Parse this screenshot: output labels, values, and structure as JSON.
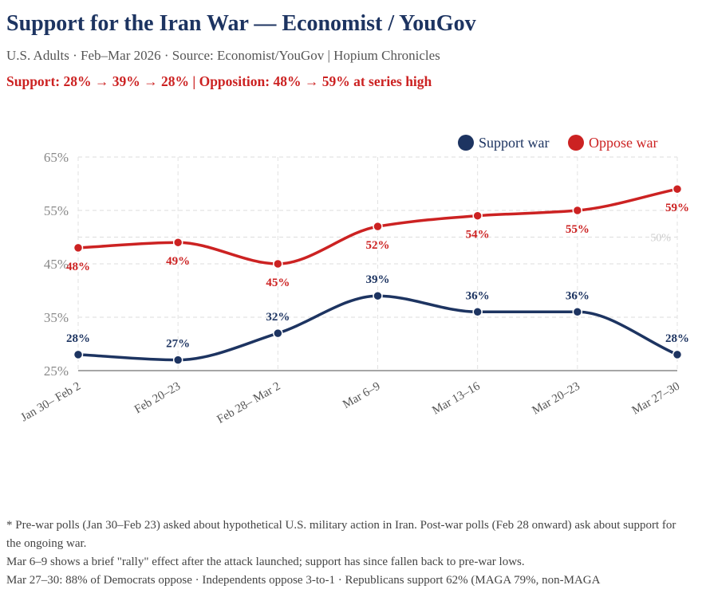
{
  "header": {
    "title": "Support for the Iran War — Economist / YouGov",
    "subtitle": "U.S. Adults · Feb–Mar 2026 · Source: Economist/YouGov | Hopium Chronicles",
    "headline": "Support: 28% → 39% → 28%  |  Opposition: 48% → 59% at series high"
  },
  "chart_data": {
    "type": "line",
    "categories": [
      "Jan 30– Feb 2",
      "Feb 20–23",
      "Feb 28– Mar 2",
      "Mar 6–9",
      "Mar 13–16",
      "Mar 20–23",
      "Mar 27–30"
    ],
    "series": [
      {
        "name": "Support war",
        "color": "#1d3461",
        "values": [
          28,
          27,
          32,
          39,
          36,
          36,
          28
        ],
        "labels": [
          "28%",
          "27%",
          "32%",
          "39%",
          "36%",
          "36%",
          "28%"
        ]
      },
      {
        "name": "Oppose war",
        "color": "#cc2222",
        "values": [
          48,
          49,
          45,
          52,
          54,
          55,
          59
        ],
        "labels": [
          "48%",
          "49%",
          "45%",
          "52%",
          "54%",
          "55%",
          "59%"
        ]
      }
    ],
    "ylim": [
      25,
      65
    ],
    "yticks": [
      25,
      35,
      45,
      55,
      65
    ],
    "ytick_labels": [
      "25%",
      "35%",
      "45%",
      "55%",
      "65%"
    ],
    "reference_line": {
      "value": 50,
      "label": "50%"
    },
    "grid": true,
    "legend_position": "top-right"
  },
  "footnotes": [
    "* Pre-war polls (Jan 30–Feb 23) asked about hypothetical U.S. military action in Iran. Post-war polls (Feb 28 onward) ask about support for the ongoing war.",
    "Mar 6–9 shows a brief \"rally\" effect after the attack launched; support has since fallen back to pre-war lows.",
    "Mar 27–30: 88% of Democrats oppose · Independents oppose 3-to-1 · Republicans support 62% (MAGA 79%, non-MAGA"
  ]
}
